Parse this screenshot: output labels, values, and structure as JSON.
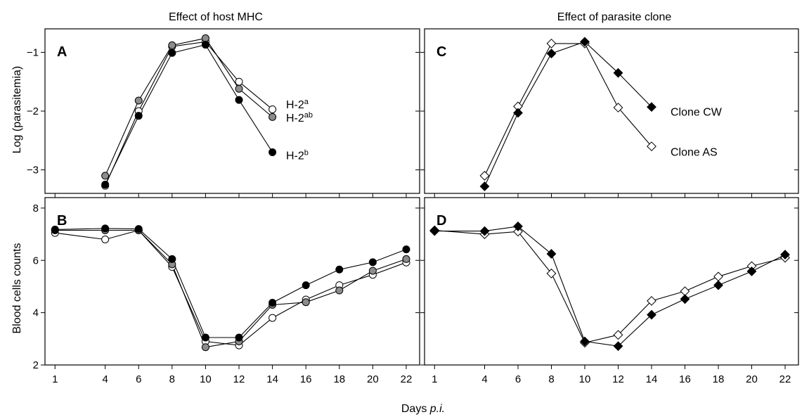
{
  "column_titles": [
    "Effect of host MHC",
    "Effect of parasite clone"
  ],
  "x_axis": {
    "label_main": "Days ",
    "label_italic": "p.i.",
    "ticks": [
      "1",
      "4",
      "6",
      "8",
      "10",
      "12",
      "14",
      "16",
      "18",
      "20",
      "22"
    ]
  },
  "y_axis_labels": {
    "top": "Log (parasitemia)",
    "bottom": "Blood cells counts"
  },
  "colors": {
    "black": "#000000",
    "grey": "#8c8c8c",
    "white": "#ffffff"
  },
  "chart_data": [
    {
      "panel": "A",
      "type": "line",
      "xlim": [
        0.4,
        22.8
      ],
      "ylim": [
        -3.4,
        -0.6
      ],
      "yticks": [
        -3,
        -2,
        -1
      ],
      "series": [
        {
          "name": "H-2a",
          "marker": "circle",
          "fill": "white",
          "x": [
            4,
            6,
            8,
            10,
            12,
            14
          ],
          "y": [
            -3.27,
            -2.0,
            -0.9,
            -0.82,
            -1.5,
            -1.97
          ]
        },
        {
          "name": "H-2ab",
          "marker": "circle",
          "fill": "grey",
          "x": [
            4,
            6,
            8,
            10,
            12,
            14
          ],
          "y": [
            -3.1,
            -1.82,
            -0.88,
            -0.76,
            -1.62,
            -2.1
          ]
        },
        {
          "name": "H-2b",
          "marker": "circle",
          "fill": "black",
          "x": [
            4,
            6,
            8,
            10,
            12,
            14
          ],
          "y": [
            -3.25,
            -2.08,
            -1.01,
            -0.87,
            -1.81,
            -2.7
          ]
        }
      ],
      "legend_labels": [
        {
          "base": "H-2",
          "sup": "a"
        },
        {
          "base": "H-2",
          "sup": "ab"
        },
        {
          "base": "H-2",
          "sup": "b"
        }
      ]
    },
    {
      "panel": "B",
      "type": "line",
      "xlim": [
        0.4,
        22.8
      ],
      "ylim": [
        2,
        8.4
      ],
      "yticks": [
        2,
        4,
        6,
        8
      ],
      "series": [
        {
          "name": "H-2a",
          "marker": "circle",
          "fill": "white",
          "x": [
            1,
            4,
            6,
            8,
            10,
            12,
            14,
            16,
            18,
            20,
            22
          ],
          "y": [
            7.05,
            6.8,
            7.15,
            5.75,
            2.9,
            2.75,
            3.8,
            4.5,
            5.05,
            5.45,
            5.92
          ]
        },
        {
          "name": "H-2ab",
          "marker": "circle",
          "fill": "grey",
          "x": [
            1,
            4,
            6,
            8,
            10,
            12,
            14,
            16,
            18,
            20,
            22
          ],
          "y": [
            7.15,
            7.15,
            7.15,
            5.85,
            2.68,
            2.9,
            4.3,
            4.4,
            4.85,
            5.6,
            6.05
          ]
        },
        {
          "name": "H-2b",
          "marker": "circle",
          "fill": "black",
          "x": [
            1,
            4,
            6,
            8,
            10,
            12,
            14,
            16,
            18,
            20,
            22
          ],
          "y": [
            7.18,
            7.22,
            7.2,
            6.05,
            3.05,
            3.05,
            4.38,
            5.05,
            5.65,
            5.93,
            6.42
          ]
        }
      ]
    },
    {
      "panel": "C",
      "type": "line",
      "xlim": [
        0.4,
        22.8
      ],
      "ylim": [
        -3.4,
        -0.6
      ],
      "yticks": [
        -3,
        -2,
        -1
      ],
      "series": [
        {
          "name": "Clone AS",
          "marker": "diamond",
          "fill": "white",
          "x": [
            4,
            6,
            8,
            10,
            12,
            14
          ],
          "y": [
            -3.1,
            -1.92,
            -0.85,
            -0.85,
            -1.94,
            -2.6
          ]
        },
        {
          "name": "Clone CW",
          "marker": "diamond",
          "fill": "black",
          "x": [
            4,
            6,
            8,
            10,
            12,
            14
          ],
          "y": [
            -3.28,
            -2.03,
            -1.02,
            -0.82,
            -1.35,
            -1.93
          ]
        }
      ],
      "legend_labels": [
        "Clone CW",
        "Clone AS"
      ]
    },
    {
      "panel": "D",
      "type": "line",
      "xlim": [
        0.4,
        22.8
      ],
      "ylim": [
        2,
        8.4
      ],
      "yticks": [
        2,
        4,
        6,
        8
      ],
      "series": [
        {
          "name": "Clone AS",
          "marker": "diamond",
          "fill": "white",
          "x": [
            1,
            4,
            6,
            8,
            10,
            12,
            14,
            16,
            18,
            20,
            22
          ],
          "y": [
            7.15,
            7.0,
            7.1,
            5.5,
            2.85,
            3.15,
            4.45,
            4.82,
            5.38,
            5.78,
            6.1
          ]
        },
        {
          "name": "Clone CW",
          "marker": "diamond",
          "fill": "black",
          "x": [
            1,
            4,
            6,
            8,
            10,
            12,
            14,
            16,
            18,
            20,
            22
          ],
          "y": [
            7.12,
            7.12,
            7.3,
            6.25,
            2.9,
            2.72,
            3.92,
            4.52,
            5.05,
            5.58,
            6.22
          ]
        }
      ]
    }
  ]
}
